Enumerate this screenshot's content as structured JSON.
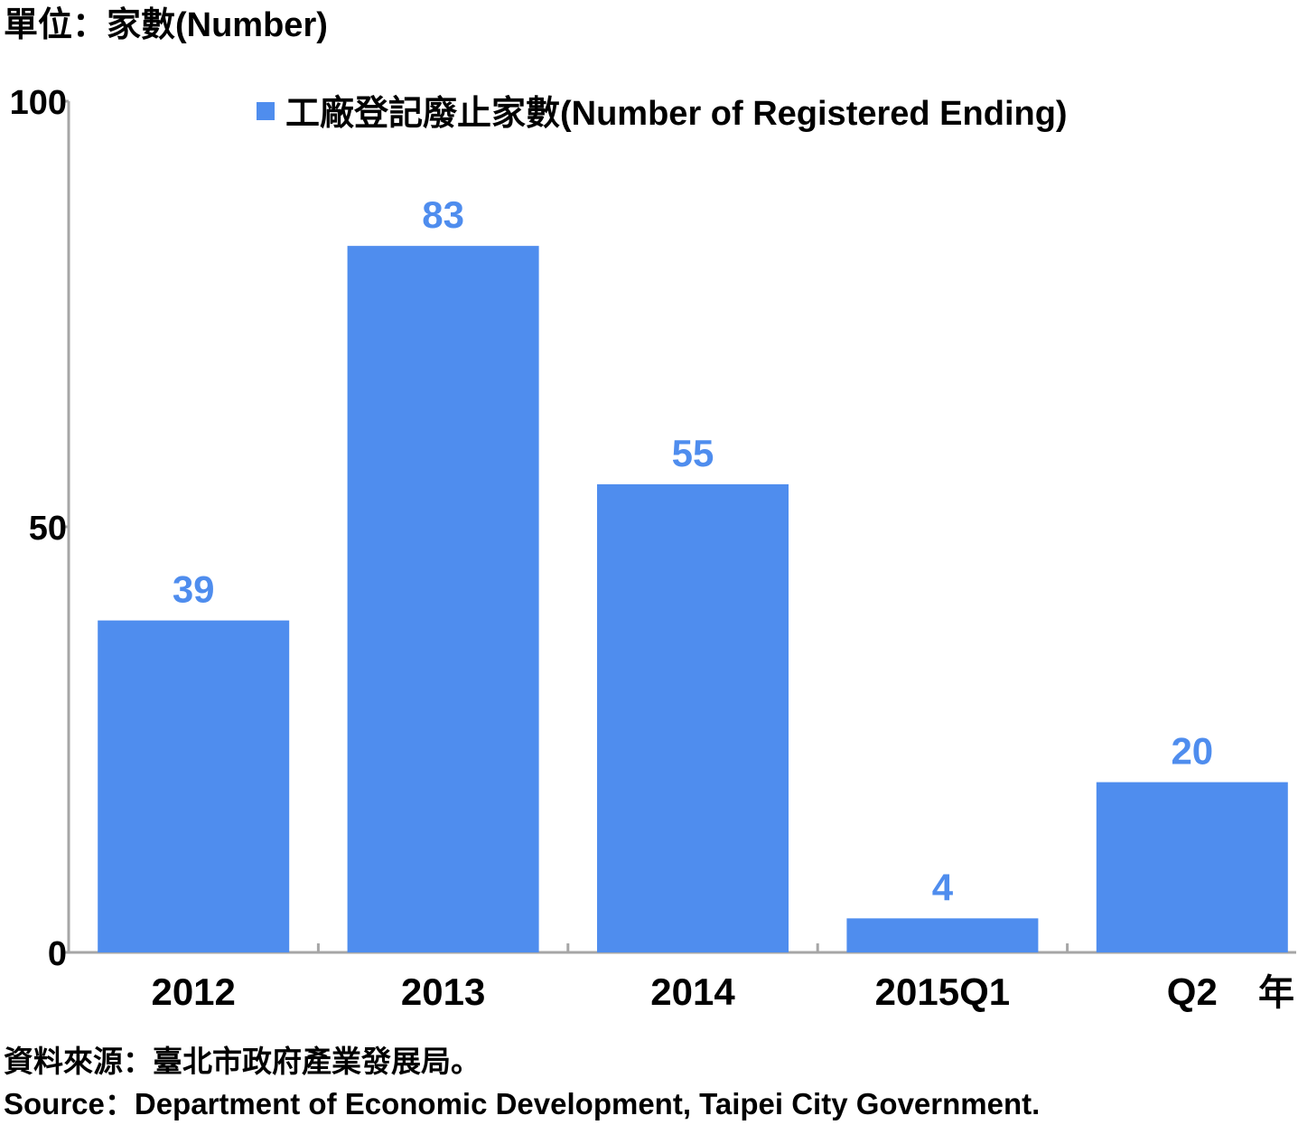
{
  "unit_label": "單位：家數(Number)",
  "x_unit_label": "年",
  "legend": {
    "label": "工廠登記廢止家數(Number of Registered Ending)"
  },
  "source": {
    "zh": "資料來源：臺北市政府產業發展局。",
    "en": "Source：Department of Economic Development, Taipei City Government."
  },
  "colors": {
    "bar": "#4F8DEE",
    "data_label": "#4F8DEE",
    "axis": "#A6A6A6",
    "text": "#000000"
  },
  "chart_data": {
    "type": "bar",
    "categories": [
      "2012",
      "2013",
      "2014",
      "2015Q1",
      "Q2"
    ],
    "series": [
      {
        "name": "工廠登記廢止家數(Number of Registered Ending)",
        "values": [
          39,
          83,
          55,
          4,
          20
        ]
      }
    ],
    "data_labels": [
      "39",
      "83",
      "55",
      "4",
      "20"
    ],
    "ylim": [
      0,
      100
    ],
    "yticks": [
      0,
      50,
      100
    ],
    "ytick_labels": [
      "0",
      "50",
      "100"
    ],
    "ylabel": "單位：家數(Number)",
    "xlabel": "年",
    "grid": false,
    "legend_position": "top"
  }
}
